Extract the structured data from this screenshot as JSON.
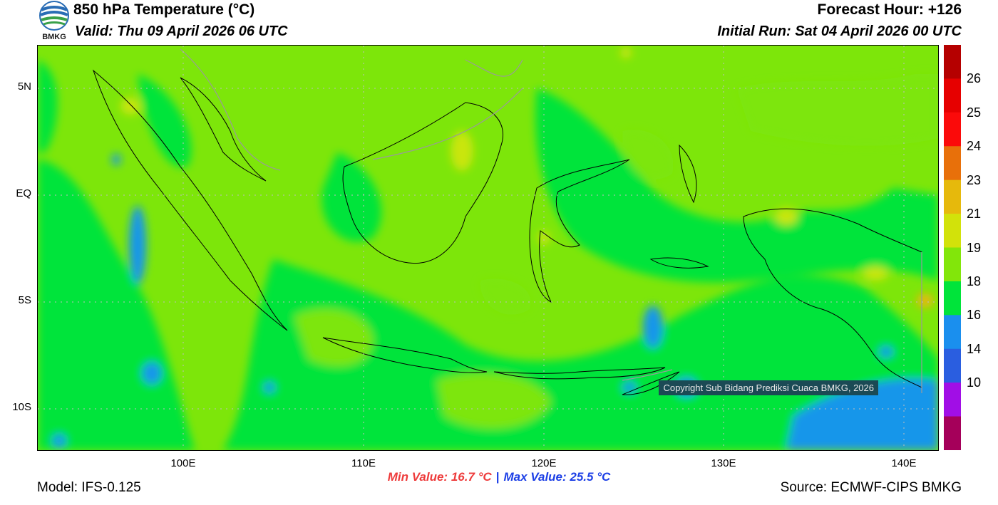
{
  "header": {
    "title": "850 hPa Temperature (°C)",
    "valid": "Valid: Thu 09 April 2026 06 UTC",
    "forecast_hour": "Forecast Hour: +126",
    "initial_run": "Initial Run: Sat 04 April 2026 00 UTC",
    "logo_text": "BMKG"
  },
  "map": {
    "lat_labels": [
      "5N",
      "EQ",
      "5S",
      "10S"
    ],
    "lon_labels": [
      "100E",
      "110E",
      "120E",
      "130E",
      "140E"
    ],
    "copyright": "Copyright Sub Bidang Prediksi Cuaca BMKG, 2026",
    "colors": {
      "c18_19": "#00e43a",
      "c19_21": "#7de60a",
      "c21_23": "#c9e60c",
      "c16_18": "#1496ea",
      "c14_16": "#2a5ee0"
    }
  },
  "colorbar": {
    "labels": [
      "26",
      "25",
      "24",
      "23",
      "21",
      "19",
      "18",
      "16",
      "14",
      "10"
    ],
    "colors": [
      "#b50000",
      "#e60000",
      "#fb0a0a",
      "#e8700a",
      "#e6b90c",
      "#d2e20a",
      "#82e60a",
      "#00e43a",
      "#1a8fee",
      "#2a5ee0",
      "#a10ee6",
      "#a5005a"
    ]
  },
  "stats": {
    "min": "Min Value: 16.7 °C",
    "separator": "|",
    "max": "Max Value: 25.5 °C"
  },
  "footer": {
    "model": "Model: IFS-0.125",
    "source": "Source: ECMWF-CIPS BMKG"
  }
}
